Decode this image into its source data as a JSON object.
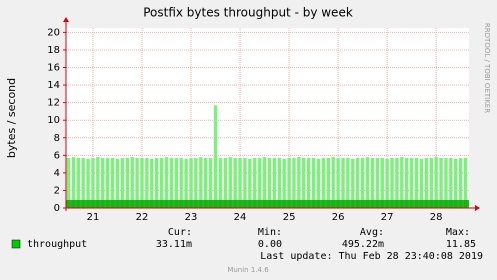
{
  "chart_data": {
    "type": "impulse",
    "title": "Postfix bytes throughput - by week",
    "y_label": "bytes / second",
    "side_text": "RRDTOOL / TOBI OETIKER",
    "x": [
      20.5,
      20.6,
      20.7,
      20.8,
      20.9,
      21.0,
      21.1,
      21.2,
      21.3,
      21.4,
      21.5,
      21.6,
      21.7,
      21.8,
      21.9,
      22.0,
      22.1,
      22.2,
      22.3,
      22.4,
      22.5,
      22.6,
      22.7,
      22.8,
      22.9,
      23.0,
      23.1,
      23.2,
      23.3,
      23.4,
      23.5,
      23.6,
      23.7,
      23.8,
      23.9,
      24.0,
      24.1,
      24.2,
      24.3,
      24.4,
      24.5,
      24.6,
      24.7,
      24.8,
      24.9,
      25.0,
      25.1,
      25.2,
      25.3,
      25.4,
      25.5,
      25.6,
      25.7,
      25.8,
      25.9,
      26.0,
      26.1,
      26.2,
      26.3,
      26.4,
      26.5,
      26.6,
      26.7,
      26.8,
      26.9,
      27.0,
      27.1,
      27.2,
      27.3,
      27.4,
      27.5,
      27.6,
      27.7,
      27.8,
      27.9,
      28.0,
      28.1,
      28.2,
      28.3,
      28.4,
      28.5,
      28.6
    ],
    "series": [
      {
        "name": "throughput",
        "color": "#00cc00",
        "values": [
          5.7,
          5.8,
          5.7,
          5.7,
          5.6,
          5.7,
          5.8,
          5.7,
          5.7,
          5.7,
          5.6,
          5.7,
          5.7,
          5.8,
          5.7,
          5.7,
          5.7,
          5.6,
          5.7,
          5.7,
          5.8,
          5.7,
          5.7,
          5.7,
          5.6,
          5.7,
          5.7,
          5.8,
          5.7,
          5.7,
          11.7,
          5.7,
          5.7,
          5.8,
          5.7,
          5.7,
          5.7,
          5.6,
          5.7,
          5.7,
          5.8,
          5.7,
          5.7,
          5.7,
          5.6,
          5.7,
          5.7,
          5.8,
          5.7,
          5.7,
          5.7,
          5.6,
          5.7,
          5.7,
          5.8,
          5.7,
          5.7,
          5.7,
          5.6,
          5.7,
          5.7,
          5.8,
          5.7,
          5.7,
          5.7,
          5.6,
          5.7,
          5.7,
          5.8,
          5.7,
          5.7,
          5.7,
          5.6,
          5.7,
          5.7,
          5.8,
          5.7,
          5.7,
          5.7,
          5.6,
          5.7,
          5.7
        ]
      }
    ],
    "xlim": [
      20.45,
      28.67
    ],
    "xticks": [
      21,
      22,
      23,
      24,
      25,
      26,
      27,
      28
    ],
    "ylim": [
      0,
      20.5
    ],
    "yticks": [
      0,
      2,
      4,
      6,
      8,
      10,
      12,
      14,
      16,
      18,
      20
    ],
    "grid": true,
    "stats": {
      "headers": [
        "Cur:",
        "Min:",
        "Avg:",
        "Max:"
      ],
      "values": [
        "33.11m",
        "0.00",
        "495.22m",
        "11.85"
      ]
    },
    "last_update": "Last update:  Thu Feb 28 23:40:08 2019",
    "footer": "Munin 1.4.6"
  }
}
